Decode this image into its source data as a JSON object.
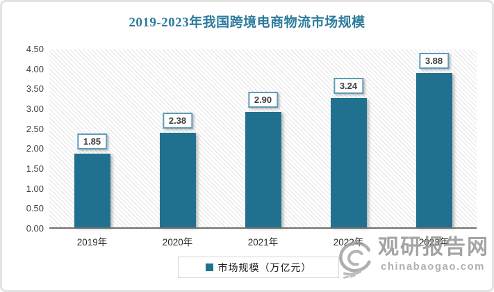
{
  "chart_data": {
    "type": "bar",
    "title": "2019-2023年我国跨境电商物流市场规模",
    "categories": [
      "2019年",
      "2020年",
      "2021年",
      "2022年",
      "2023年"
    ],
    "values": [
      1.85,
      2.38,
      2.9,
      3.24,
      3.88
    ],
    "value_labels": [
      "1.85",
      "2.38",
      "2.90",
      "3.24",
      "3.88"
    ],
    "series_name": "市场规模（万亿元）",
    "ylabel": "",
    "xlabel": "",
    "ylim": [
      0,
      4.5
    ],
    "ytick_labels": [
      "4.50",
      "4.00",
      "3.50",
      "3.00",
      "2.50",
      "2.00",
      "1.50",
      "1.00",
      "0.50",
      "0.00"
    ],
    "grid": false,
    "legend_position": "bottom",
    "bar_color": "#20718f",
    "title_color": "#2e7b9c"
  },
  "legend": {
    "label": "市场规模（万亿元）"
  },
  "watermark": {
    "site_name": "观研报告网",
    "site_url": "chinabaogao.com"
  }
}
